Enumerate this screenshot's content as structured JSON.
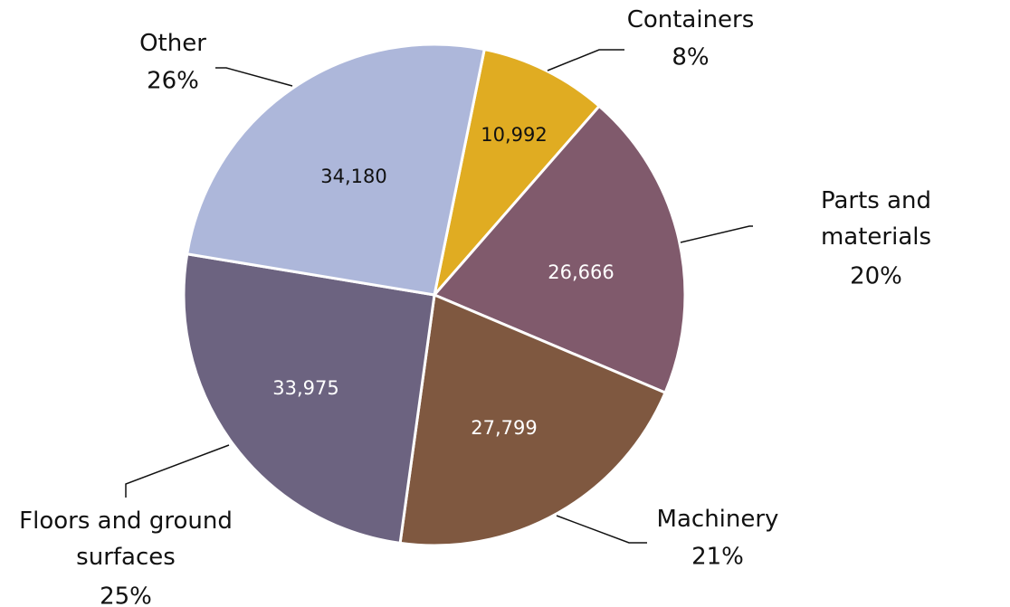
{
  "chart_data": {
    "type": "pie",
    "categories": [
      "Containers",
      "Parts and materials",
      "Machinery",
      "Floors and ground surfaces",
      "Other"
    ],
    "values": [
      10992,
      26666,
      27799,
      33975,
      34180
    ],
    "value_labels": [
      "10,992",
      "26,666",
      "27,799",
      "33,975",
      "34,180"
    ],
    "percent_labels": [
      "8%",
      "20%",
      "21%",
      "25%",
      "26%"
    ],
    "colors": [
      "#e0ac22",
      "#805a6c",
      "#7f5840",
      "#6c6380",
      "#adb7da"
    ]
  }
}
